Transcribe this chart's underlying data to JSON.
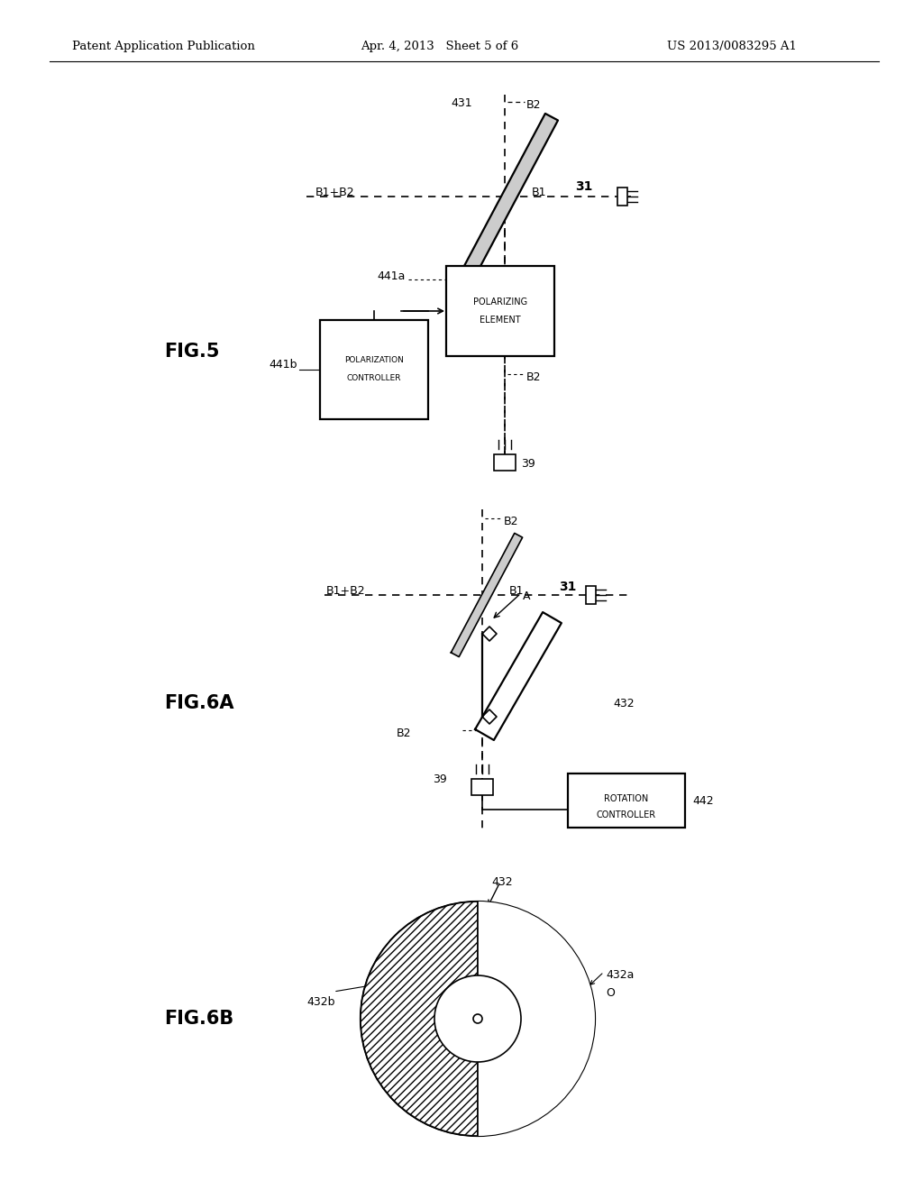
{
  "bg_color": "#ffffff",
  "header_left": "Patent Application Publication",
  "header_center": "Apr. 4, 2013   Sheet 5 of 6",
  "header_right": "US 2013/0083295 A1"
}
